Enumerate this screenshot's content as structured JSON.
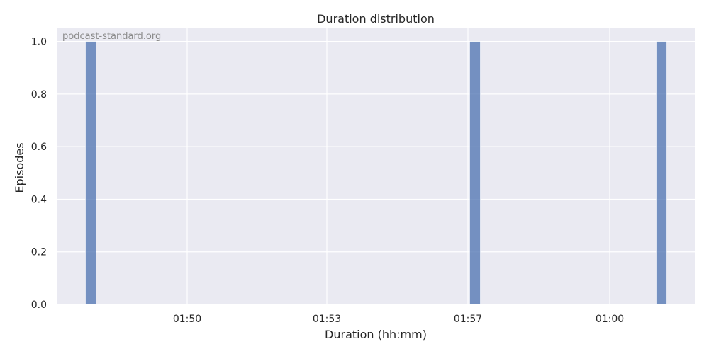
{
  "chart_data": {
    "type": "bar",
    "title": "Duration distribution",
    "xlabel": "Duration (hh:mm)",
    "ylabel": "Episodes",
    "watermark": "podcast-standard.org",
    "x_axis": {
      "ticks": [
        "01:50",
        "01:53",
        "01:57",
        "01:00"
      ]
    },
    "y_axis": {
      "ylim": [
        0,
        1.05
      ],
      "ticks": [
        "0.0",
        "0.2",
        "0.4",
        "0.6",
        "0.8",
        "1.0"
      ]
    },
    "bars": [
      {
        "x_label": "before 01:50",
        "value": 1
      },
      {
        "x_label": "between 01:57 and 01:00",
        "value": 1
      },
      {
        "x_label": "after 01:00",
        "value": 1
      }
    ],
    "grid": true,
    "colors": {
      "background": "#eaeaf2",
      "grid": "#ffffff",
      "bar": "#4c72b0"
    }
  }
}
